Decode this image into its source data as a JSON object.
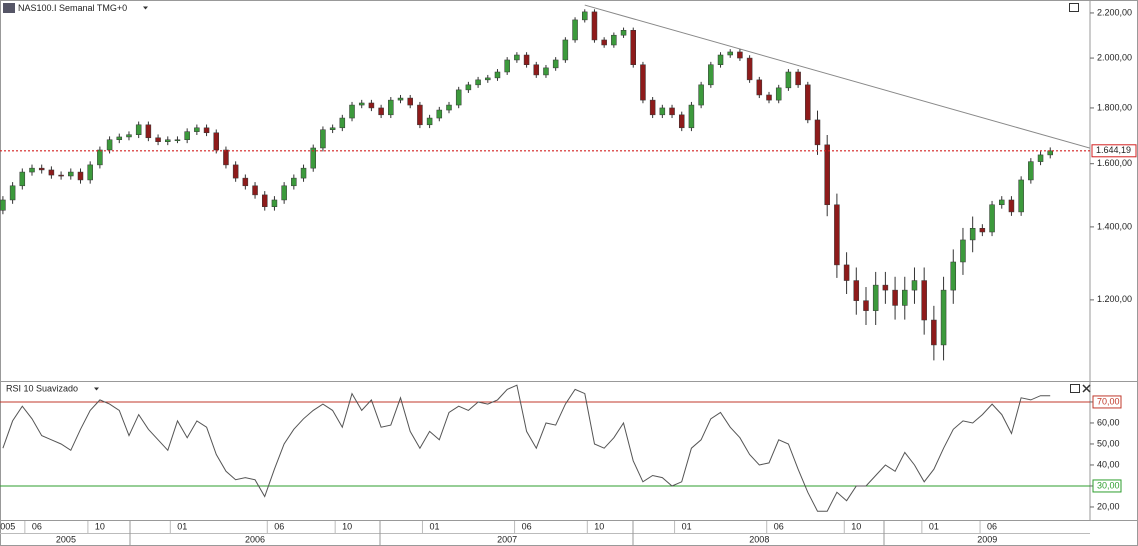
{
  "chart_data": [
    {
      "type": "candlestick",
      "title": "NAS100.I Semanal TMG+0",
      "log_scale": true,
      "up_color": "#3c9a3c",
      "down_color": "#8e1b1b",
      "wick_color": "#333333",
      "xlim": [
        -0.6,
        224.2
      ],
      "ylim": [
        1011,
        2261
      ],
      "yticks": [
        {
          "value": 1200,
          "label": "1.200,00"
        },
        {
          "value": 1400,
          "label": "1.400,00"
        },
        {
          "value": 1600,
          "label": "1.600,00"
        },
        {
          "value": 1800,
          "label": "1.800,00"
        },
        {
          "value": 2000,
          "label": "2.000,00"
        },
        {
          "value": 2200,
          "label": "2.200,00"
        }
      ],
      "xticks": [
        {
          "value": 1,
          "label": "005"
        },
        {
          "value": 7,
          "label": "06"
        },
        {
          "value": 20,
          "label": "10"
        },
        {
          "value": 37,
          "label": "01"
        },
        {
          "value": 57,
          "label": "06"
        },
        {
          "value": 71,
          "label": "10"
        },
        {
          "value": 89,
          "label": "01"
        },
        {
          "value": 108,
          "label": "06"
        },
        {
          "value": 123,
          "label": "10"
        },
        {
          "value": 141,
          "label": "01"
        },
        {
          "value": 160,
          "label": "06"
        },
        {
          "value": 176,
          "label": "10"
        },
        {
          "value": 192,
          "label": "01"
        },
        {
          "value": 204,
          "label": "06"
        }
      ],
      "year_labels": [
        {
          "value": 13,
          "label": "2005"
        },
        {
          "value": 52,
          "label": "2006"
        },
        {
          "value": 104,
          "label": "2007"
        },
        {
          "value": 156,
          "label": "2008"
        },
        {
          "value": 203,
          "label": "2009"
        }
      ],
      "last_price": {
        "value": 1644.19,
        "label": "1.644,19",
        "color": "#d42020"
      },
      "trendline": {
        "x": [
          120,
          234
        ],
        "values": [
          2237,
          1607
        ],
        "color": "#888888"
      },
      "x": [
        0,
        2,
        4,
        6,
        8,
        10,
        12,
        14,
        16,
        18,
        20,
        22,
        24,
        26,
        28,
        30,
        32,
        34,
        36,
        38,
        40,
        42,
        44,
        46,
        48,
        50,
        52,
        54,
        56,
        58,
        60,
        62,
        64,
        66,
        68,
        70,
        72,
        74,
        76,
        78,
        80,
        82,
        84,
        86,
        88,
        90,
        92,
        94,
        96,
        98,
        100,
        102,
        104,
        106,
        108,
        110,
        112,
        114,
        116,
        118,
        120,
        122,
        124,
        126,
        128,
        130,
        132,
        134,
        136,
        138,
        140,
        142,
        144,
        146,
        148,
        150,
        152,
        154,
        156,
        158,
        160,
        162,
        164,
        166,
        168,
        170,
        172,
        174,
        176,
        178,
        180,
        182,
        184,
        186,
        188,
        190,
        192,
        194,
        196,
        198,
        200,
        202,
        204,
        206,
        208,
        210,
        212,
        214,
        216
      ],
      "ohlc": [
        [
          1450,
          1494,
          1438,
          1482
        ],
        [
          1482,
          1539,
          1470,
          1527
        ],
        [
          1527,
          1584,
          1515,
          1572
        ],
        [
          1572,
          1597,
          1560,
          1585
        ],
        [
          1585,
          1597,
          1567,
          1579
        ],
        [
          1579,
          1591,
          1550,
          1562
        ],
        [
          1562,
          1574,
          1547,
          1559
        ],
        [
          1559,
          1584,
          1547,
          1572
        ],
        [
          1572,
          1584,
          1534,
          1546
        ],
        [
          1546,
          1608,
          1534,
          1596
        ],
        [
          1596,
          1659,
          1584,
          1647
        ],
        [
          1647,
          1695,
          1635,
          1683
        ],
        [
          1683,
          1705,
          1671,
          1693
        ],
        [
          1693,
          1713,
          1681,
          1701
        ],
        [
          1701,
          1749,
          1689,
          1737
        ],
        [
          1737,
          1749,
          1678,
          1690
        ],
        [
          1690,
          1702,
          1664,
          1676
        ],
        [
          1676,
          1695,
          1664,
          1683
        ],
        [
          1683,
          1695,
          1671,
          1683
        ],
        [
          1683,
          1724,
          1671,
          1712
        ],
        [
          1712,
          1738,
          1700,
          1726
        ],
        [
          1726,
          1738,
          1696,
          1708
        ],
        [
          1708,
          1720,
          1635,
          1647
        ],
        [
          1647,
          1659,
          1584,
          1596
        ],
        [
          1596,
          1608,
          1540,
          1552
        ],
        [
          1552,
          1564,
          1515,
          1527
        ],
        [
          1527,
          1539,
          1486,
          1498
        ],
        [
          1498,
          1510,
          1449,
          1461
        ],
        [
          1461,
          1494,
          1449,
          1482
        ],
        [
          1482,
          1539,
          1470,
          1527
        ],
        [
          1527,
          1564,
          1515,
          1552
        ],
        [
          1552,
          1597,
          1540,
          1585
        ],
        [
          1585,
          1666,
          1573,
          1654
        ],
        [
          1654,
          1731,
          1642,
          1719
        ],
        [
          1719,
          1738,
          1707,
          1726
        ],
        [
          1726,
          1774,
          1714,
          1762
        ],
        [
          1762,
          1823,
          1750,
          1811
        ],
        [
          1811,
          1831,
          1799,
          1819
        ],
        [
          1819,
          1831,
          1788,
          1800
        ],
        [
          1800,
          1812,
          1762,
          1774
        ],
        [
          1774,
          1842,
          1762,
          1830
        ],
        [
          1830,
          1850,
          1818,
          1838
        ],
        [
          1838,
          1850,
          1799,
          1811
        ],
        [
          1811,
          1823,
          1725,
          1737
        ],
        [
          1737,
          1774,
          1725,
          1762
        ],
        [
          1762,
          1804,
          1750,
          1792
        ],
        [
          1792,
          1823,
          1780,
          1811
        ],
        [
          1811,
          1882,
          1799,
          1870
        ],
        [
          1870,
          1902,
          1858,
          1890
        ],
        [
          1890,
          1922,
          1878,
          1910
        ],
        [
          1910,
          1930,
          1898,
          1918
        ],
        [
          1918,
          1954,
          1906,
          1942
        ],
        [
          1942,
          2004,
          1930,
          1992
        ],
        [
          1992,
          2025,
          1980,
          2013
        ],
        [
          2013,
          2025,
          1960,
          1972
        ],
        [
          1972,
          1984,
          1918,
          1930
        ],
        [
          1930,
          1971,
          1918,
          1959
        ],
        [
          1959,
          2004,
          1947,
          1992
        ],
        [
          1992,
          2090,
          1980,
          2078
        ],
        [
          2078,
          2180,
          2066,
          2168
        ],
        [
          2168,
          2217,
          2156,
          2205
        ],
        [
          2205,
          2217,
          2066,
          2078
        ],
        [
          2078,
          2090,
          2044,
          2056
        ],
        [
          2056,
          2111,
          2044,
          2099
        ],
        [
          2099,
          2133,
          2087,
          2121
        ],
        [
          2121,
          2133,
          1960,
          1972
        ],
        [
          1972,
          1984,
          1818,
          1830
        ],
        [
          1830,
          1842,
          1762,
          1774
        ],
        [
          1774,
          1812,
          1762,
          1800
        ],
        [
          1800,
          1812,
          1762,
          1774
        ],
        [
          1774,
          1786,
          1714,
          1726
        ],
        [
          1726,
          1823,
          1714,
          1811
        ],
        [
          1811,
          1902,
          1799,
          1890
        ],
        [
          1890,
          1984,
          1878,
          1972
        ],
        [
          1972,
          2025,
          1960,
          2013
        ],
        [
          2013,
          2038,
          2001,
          2026
        ],
        [
          2026,
          2038,
          1988,
          2000
        ],
        [
          2000,
          2012,
          1898,
          1910
        ],
        [
          1910,
          1922,
          1838,
          1850
        ],
        [
          1850,
          1862,
          1818,
          1830
        ],
        [
          1830,
          1890,
          1818,
          1878
        ],
        [
          1878,
          1954,
          1866,
          1942
        ],
        [
          1942,
          1954,
          1878,
          1890
        ],
        [
          1890,
          1902,
          1743,
          1755
        ],
        [
          1755,
          1790,
          1630,
          1665
        ],
        [
          1665,
          1700,
          1432,
          1467
        ],
        [
          1467,
          1502,
          1257,
          1292
        ],
        [
          1292,
          1327,
          1215,
          1250
        ],
        [
          1250,
          1285,
          1163,
          1198
        ],
        [
          1198,
          1233,
          1138,
          1173
        ],
        [
          1173,
          1273,
          1138,
          1238
        ],
        [
          1238,
          1273,
          1190,
          1225
        ],
        [
          1225,
          1260,
          1151,
          1186
        ],
        [
          1186,
          1260,
          1151,
          1225
        ],
        [
          1225,
          1285,
          1190,
          1250
        ],
        [
          1250,
          1285,
          1115,
          1150
        ],
        [
          1150,
          1185,
          1056,
          1091
        ],
        [
          1091,
          1260,
          1056,
          1225
        ],
        [
          1225,
          1335,
          1190,
          1300
        ],
        [
          1300,
          1397,
          1265,
          1362
        ],
        [
          1362,
          1431,
          1327,
          1396
        ],
        [
          1396,
          1408,
          1373,
          1385
        ],
        [
          1385,
          1479,
          1373,
          1467
        ],
        [
          1467,
          1494,
          1455,
          1482
        ],
        [
          1482,
          1494,
          1433,
          1445
        ],
        [
          1445,
          1558,
          1433,
          1546
        ],
        [
          1546,
          1619,
          1534,
          1607
        ],
        [
          1607,
          1642,
          1595,
          1630
        ],
        [
          1630,
          1656,
          1618,
          1644
        ]
      ]
    },
    {
      "type": "line",
      "title": "RSI 10 Suavizado",
      "color": "#555555",
      "xlim": [
        -0.6,
        224.2
      ],
      "ylim": [
        13.8,
        79.5
      ],
      "yticks": [
        {
          "value": 20,
          "label": "20,00"
        },
        {
          "value": 30,
          "label": "30,00"
        },
        {
          "value": 40,
          "label": "40,00"
        },
        {
          "value": 50,
          "label": "50,00"
        },
        {
          "value": 60,
          "label": "60,00"
        },
        {
          "value": 70,
          "label": "70,00"
        }
      ],
      "levels": [
        {
          "value": 70,
          "color": "#c0392b"
        },
        {
          "value": 30,
          "color": "#2e9e2e"
        }
      ],
      "values": [
        48,
        61,
        68,
        62,
        54,
        52,
        50,
        47,
        57,
        66,
        71,
        69,
        66,
        54,
        64,
        57,
        52,
        47,
        61,
        53,
        61,
        58,
        45,
        37,
        33,
        34,
        33,
        25,
        38,
        50,
        57,
        62,
        66,
        69,
        66,
        58,
        74,
        66,
        71,
        58,
        59,
        72,
        56,
        48,
        56,
        52,
        65,
        68,
        66,
        70,
        69,
        71,
        76,
        78,
        56,
        48,
        60,
        59,
        69,
        76,
        74,
        50,
        48,
        53,
        60,
        42,
        32,
        35,
        34,
        30,
        32,
        48,
        52,
        62,
        65,
        58,
        53,
        45,
        40,
        41,
        52,
        50,
        38,
        27,
        18,
        18,
        27,
        23,
        30,
        30,
        35,
        40,
        37,
        46,
        40,
        32,
        38,
        48,
        57,
        61,
        60,
        64,
        69,
        64,
        55,
        72,
        71,
        73,
        73
      ]
    }
  ]
}
